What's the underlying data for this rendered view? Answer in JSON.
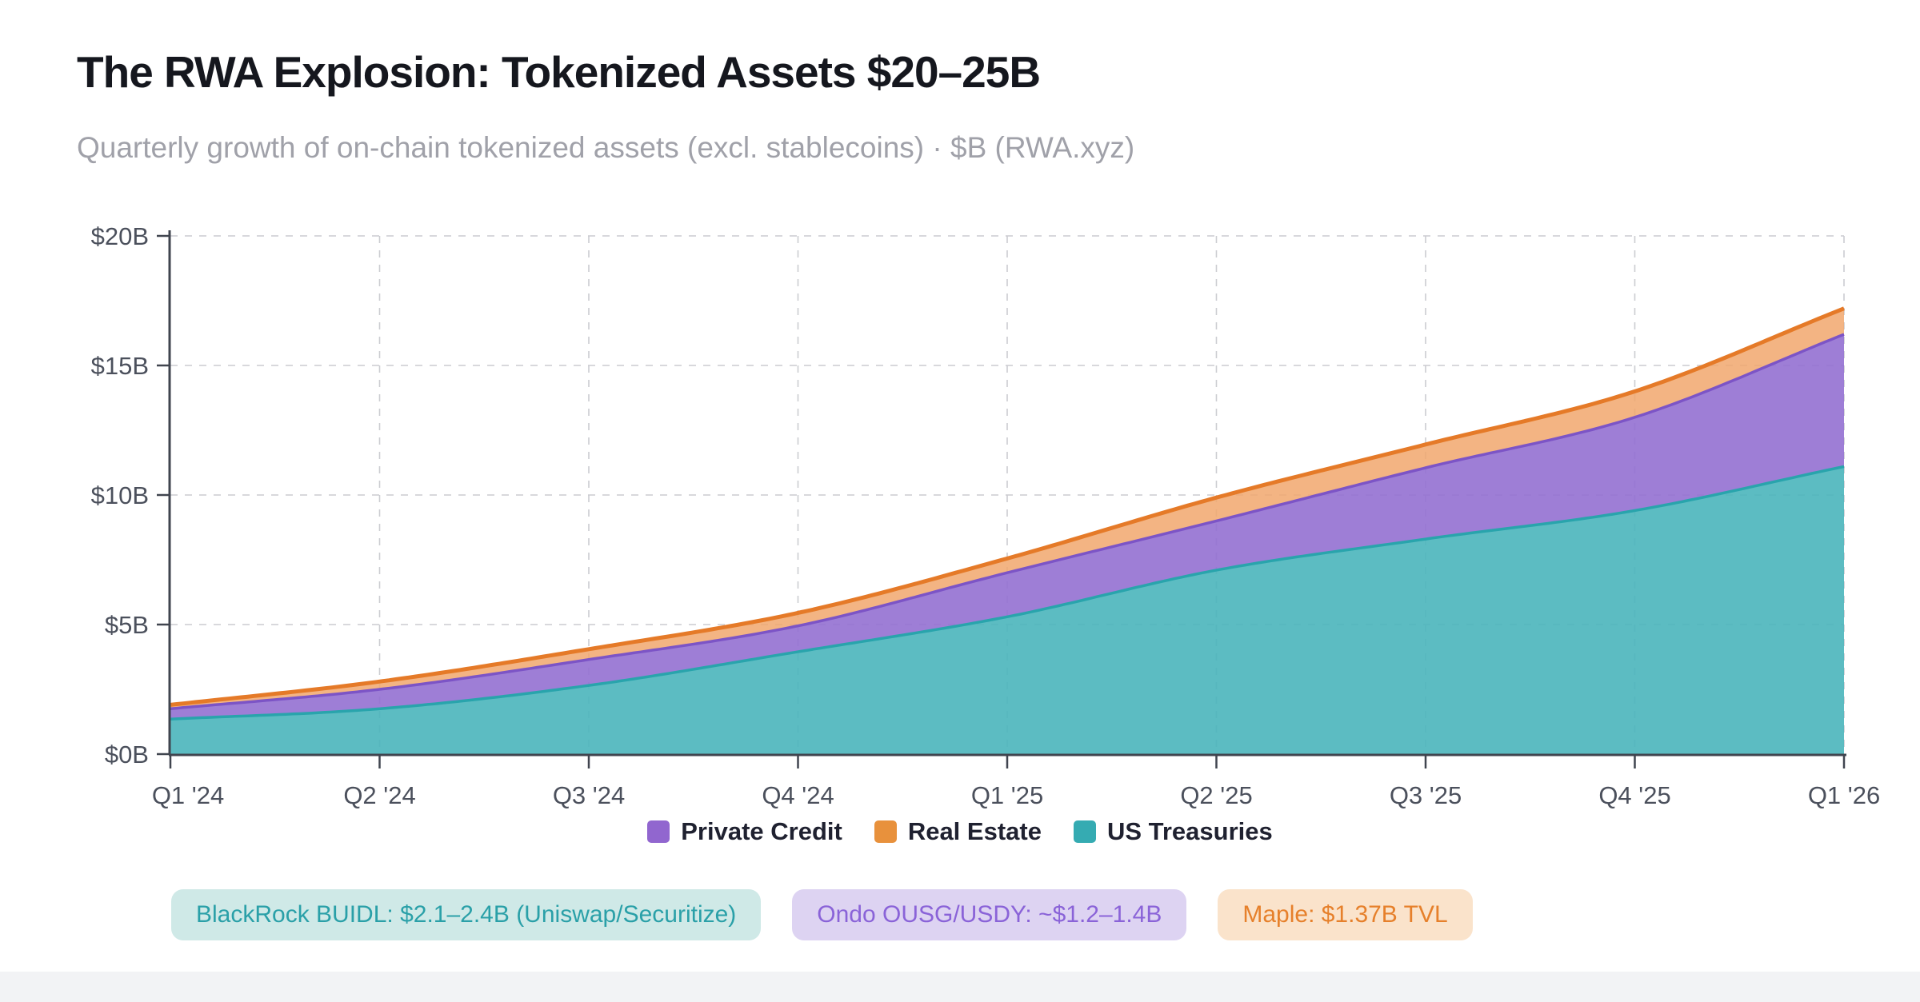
{
  "page": {
    "title": "The RWA Explosion: Tokenized Assets $20–25B",
    "subtitle": "Quarterly growth of on-chain tokenized assets (excl. stablecoins) · $B (RWA.xyz)"
  },
  "chart_data": {
    "type": "area",
    "stacked": true,
    "title": "The RWA Explosion: Tokenized Assets $20–25B",
    "categories": [
      "Q1 '24",
      "Q2 '24",
      "Q3 '24",
      "Q4 '24",
      "Q1 '25",
      "Q2 '25",
      "Q3 '25",
      "Q4 '25",
      "Q1 '26"
    ],
    "series": [
      {
        "name": "US Treasuries",
        "values": [
          1.35,
          1.75,
          2.65,
          3.95,
          5.3,
          7.1,
          8.3,
          9.4,
          11.1
        ],
        "fill": "#4ab5bb",
        "fill_opacity": 0.9,
        "stroke": "#29a4ac",
        "stroke_width": 3.5
      },
      {
        "name": "Private Credit",
        "values": [
          0.4,
          0.75,
          1.0,
          1.0,
          1.7,
          1.9,
          2.75,
          3.6,
          5.1
        ],
        "fill": "#9470d2",
        "fill_opacity": 0.9,
        "stroke": "#7c54c6",
        "stroke_width": 3.5
      },
      {
        "name": "Real Estate",
        "values": [
          0.15,
          0.3,
          0.4,
          0.5,
          0.55,
          0.9,
          0.9,
          1.0,
          1.0
        ],
        "fill": "#f1a76d",
        "fill_opacity": 0.85,
        "stroke": "#e57a28",
        "stroke_width": 5
      }
    ],
    "totals": [
      1.9,
      2.8,
      4.05,
      5.45,
      7.55,
      9.9,
      11.95,
      14.0,
      17.2
    ],
    "ylim": [
      0,
      20
    ],
    "ytick_values": [
      0,
      5,
      10,
      15,
      20
    ],
    "ytick_labels": [
      "$0B",
      "$5B",
      "$10B",
      "$15B",
      "$20B"
    ],
    "xlabel": "",
    "ylabel": "",
    "grid": "dashed",
    "legend_position": "bottom"
  },
  "legend": {
    "items": [
      {
        "label": "Private Credit",
        "color": "#9166cf"
      },
      {
        "label": "Real Estate",
        "color": "#e8913c"
      },
      {
        "label": "US Treasuries",
        "color": "#35abb2"
      }
    ]
  },
  "annotations": {
    "badges": [
      {
        "label": "BlackRock BUIDL: $2.1–2.4B (Uniswap/Securitize)",
        "text_color": "#2aa0a8",
        "bg_color": "#cfe9e7"
      },
      {
        "label": "Ondo OUSG/USDY: ~$1.2–1.4B",
        "text_color": "#8a63d8",
        "bg_color": "#ddd3f2"
      },
      {
        "label": "Maple: $1.37B TVL",
        "text_color": "#e6802b",
        "bg_color": "#fae3cb"
      }
    ]
  },
  "axis_style": {
    "tick_color": "#4b505c",
    "axis_line_color": "#40454f",
    "gridline_color": "#cbccd1"
  }
}
